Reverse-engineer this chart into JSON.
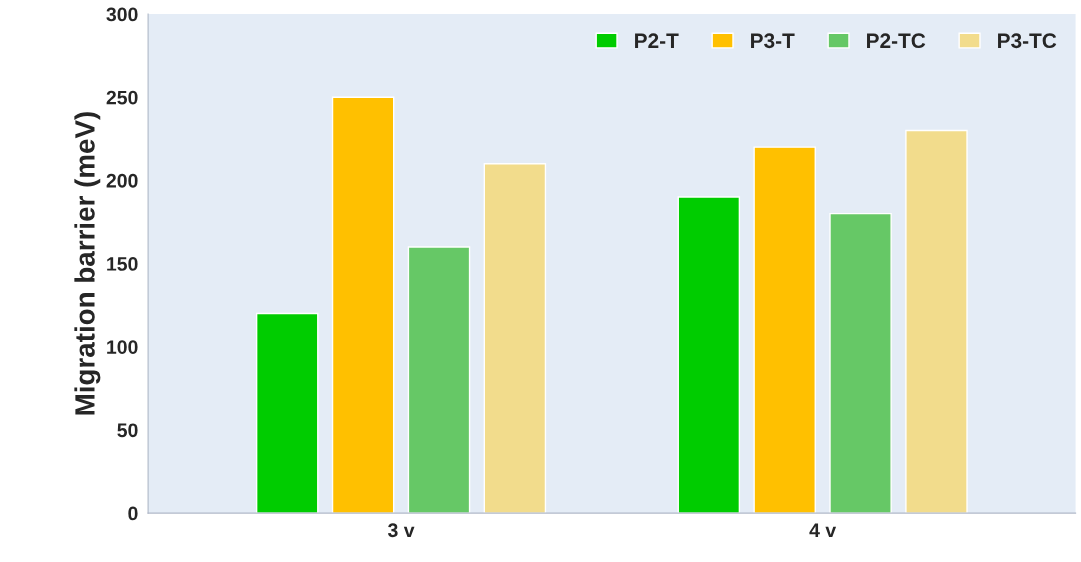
{
  "chart_data": {
    "type": "bar",
    "ylabel": "Migration barrier (meV)",
    "categories": [
      "3 v",
      "4 v"
    ],
    "series": [
      {
        "name": "P2-T",
        "color": "#00cc00",
        "values": [
          120,
          190
        ]
      },
      {
        "name": "P3-T",
        "color": "#ffc000",
        "values": [
          250,
          220
        ]
      },
      {
        "name": "P2-TC",
        "color": "#66c866",
        "values": [
          160,
          180
        ]
      },
      {
        "name": "P3-TC",
        "color": "#f2dc8c",
        "values": [
          210,
          230
        ]
      }
    ],
    "ylim": [
      0,
      300
    ],
    "yticks": [
      0,
      50,
      100,
      150,
      200,
      250,
      300
    ],
    "grid": false,
    "legend": "top right"
  }
}
